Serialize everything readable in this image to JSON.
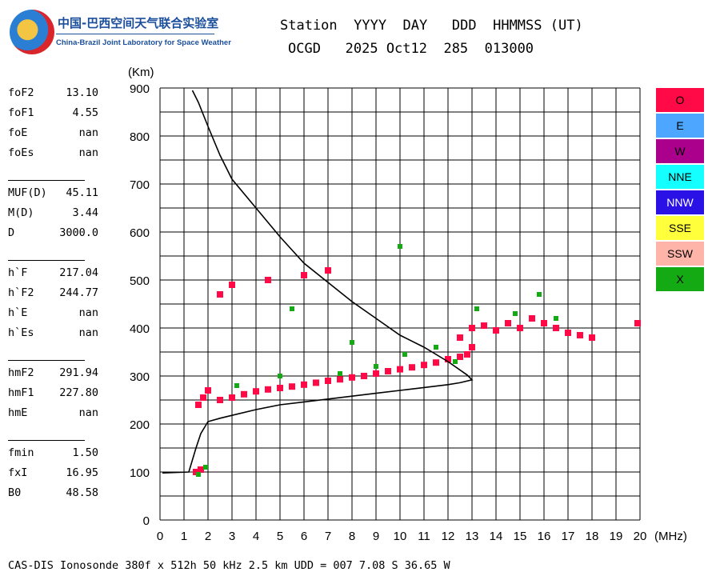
{
  "logo": {
    "cn_text": "中国-巴西空间天气联合实验室",
    "en_text": "China-Brazil Joint Laboratory for Space Weather"
  },
  "header": {
    "line1": "Station  YYYY  DAY   DDD  HHMMSS (UT)",
    "line2": "OCGD   2025 Oct12  285  013000"
  },
  "params": [
    {
      "label": "foF2",
      "value": "13.10"
    },
    {
      "label": "foF1",
      "value": "4.55"
    },
    {
      "label": "foE",
      "value": "nan"
    },
    {
      "label": "foEs",
      "value": "nan"
    },
    {
      "label": "MUF(D)",
      "value": "45.11"
    },
    {
      "label": "M(D)",
      "value": "3.44"
    },
    {
      "label": "D",
      "value": "3000.0"
    },
    {
      "label": "h`F",
      "value": "217.04"
    },
    {
      "label": "h`F2",
      "value": "244.77"
    },
    {
      "label": "h`E",
      "value": "nan"
    },
    {
      "label": "h`Es",
      "value": "nan"
    },
    {
      "label": "hmF2",
      "value": "291.94"
    },
    {
      "label": "hmF1",
      "value": "227.80"
    },
    {
      "label": "hmE",
      "value": "nan"
    },
    {
      "label": "fmin",
      "value": "1.50"
    },
    {
      "label": "fxI",
      "value": "16.95"
    },
    {
      "label": "B0",
      "value": "48.58"
    }
  ],
  "legend": [
    {
      "label": "O",
      "color": "#ff0a46"
    },
    {
      "label": "E",
      "color": "#4da6ff"
    },
    {
      "label": "W",
      "color": "#aa008c"
    },
    {
      "label": "NNE",
      "color": "#14ffff"
    },
    {
      "label": "NNW",
      "color": "#2a12e6"
    },
    {
      "label": "SSE",
      "color": "#ffff3c"
    },
    {
      "label": "SSW",
      "color": "#ffb4aa"
    },
    {
      "label": "X",
      "color": "#14aa14"
    }
  ],
  "footer": "CAS-DIS Ionosonde 380f x 512h 50 kHz 2.5 km UDD = 007 7.08 S 36.65 W",
  "chart_data": {
    "type": "scatter",
    "xlabel": "(MHz)",
    "ylabel": "(Km)",
    "xlim": [
      0,
      20
    ],
    "ylim": [
      0,
      900
    ],
    "xticks": [
      "0",
      "1",
      "2",
      "3",
      "4",
      "5",
      "6",
      "7",
      "8",
      "9",
      "10",
      "11",
      "12",
      "13",
      "14",
      "15",
      "16",
      "17",
      "18",
      "19",
      "20"
    ],
    "yticks": [
      "0",
      "100",
      "200",
      "300",
      "400",
      "500",
      "600",
      "700",
      "800",
      "900"
    ],
    "grid": true,
    "legend_position": "right",
    "colors": {
      "o_trace": "#ff0a46",
      "x_trace": "#14aa14",
      "profile": "#000000"
    },
    "series": [
      {
        "name": "O",
        "points": [
          [
            1.5,
            100
          ],
          [
            1.7,
            105
          ],
          [
            1.6,
            240
          ],
          [
            1.8,
            255
          ],
          [
            2.0,
            270
          ],
          [
            2.5,
            250
          ],
          [
            3.0,
            255
          ],
          [
            3.5,
            262
          ],
          [
            4.0,
            268
          ],
          [
            4.5,
            272
          ],
          [
            5.0,
            275
          ],
          [
            5.5,
            278
          ],
          [
            6.0,
            282
          ],
          [
            6.5,
            286
          ],
          [
            7.0,
            290
          ],
          [
            7.5,
            293
          ],
          [
            8.0,
            297
          ],
          [
            8.5,
            300
          ],
          [
            9.0,
            305
          ],
          [
            9.5,
            310
          ],
          [
            10.0,
            314
          ],
          [
            10.5,
            318
          ],
          [
            11.0,
            323
          ],
          [
            11.5,
            328
          ],
          [
            12.0,
            335
          ],
          [
            12.5,
            340
          ],
          [
            12.8,
            345
          ],
          [
            13.0,
            360
          ],
          [
            12.5,
            380
          ],
          [
            13.0,
            400
          ],
          [
            13.5,
            405
          ],
          [
            14.0,
            395
          ],
          [
            14.5,
            410
          ],
          [
            15.0,
            400
          ],
          [
            15.5,
            420
          ],
          [
            16.0,
            410
          ],
          [
            16.5,
            400
          ],
          [
            17.0,
            390
          ],
          [
            17.5,
            385
          ],
          [
            18.0,
            380
          ],
          [
            2.5,
            470
          ],
          [
            3.0,
            490
          ],
          [
            4.5,
            500
          ],
          [
            6.0,
            510
          ],
          [
            7.0,
            520
          ],
          [
            19.9,
            410
          ]
        ]
      },
      {
        "name": "X",
        "points": [
          [
            1.6,
            95
          ],
          [
            1.9,
            110
          ],
          [
            3.2,
            280
          ],
          [
            5.0,
            300
          ],
          [
            7.5,
            305
          ],
          [
            9.0,
            320
          ],
          [
            10.2,
            345
          ],
          [
            11.5,
            360
          ],
          [
            12.3,
            330
          ],
          [
            13.2,
            440
          ],
          [
            14.8,
            430
          ],
          [
            15.8,
            470
          ],
          [
            16.5,
            420
          ],
          [
            10.0,
            570
          ],
          [
            8.0,
            370
          ],
          [
            5.5,
            440
          ]
        ]
      },
      {
        "name": "Profile",
        "points": [
          [
            0.1,
            98
          ],
          [
            1.2,
            100
          ],
          [
            1.5,
            150
          ],
          [
            1.7,
            180
          ],
          [
            2.0,
            205
          ],
          [
            2.5,
            212
          ],
          [
            3.0,
            218
          ],
          [
            4.0,
            230
          ],
          [
            5.0,
            240
          ],
          [
            6.0,
            246
          ],
          [
            7.0,
            252
          ],
          [
            8.0,
            258
          ],
          [
            9.0,
            264
          ],
          [
            10.0,
            270
          ],
          [
            11.0,
            276
          ],
          [
            12.0,
            282
          ],
          [
            12.5,
            286
          ],
          [
            13.0,
            292
          ],
          [
            12.8,
            302
          ],
          [
            12.0,
            330
          ],
          [
            11.0,
            360
          ],
          [
            10.0,
            385
          ],
          [
            9.0,
            420
          ],
          [
            8.0,
            455
          ],
          [
            7.0,
            495
          ],
          [
            6.0,
            535
          ],
          [
            5.0,
            590
          ],
          [
            4.0,
            650
          ],
          [
            3.0,
            710
          ],
          [
            2.5,
            760
          ],
          [
            2.0,
            820
          ],
          [
            1.6,
            870
          ],
          [
            1.35,
            895
          ]
        ]
      }
    ]
  }
}
